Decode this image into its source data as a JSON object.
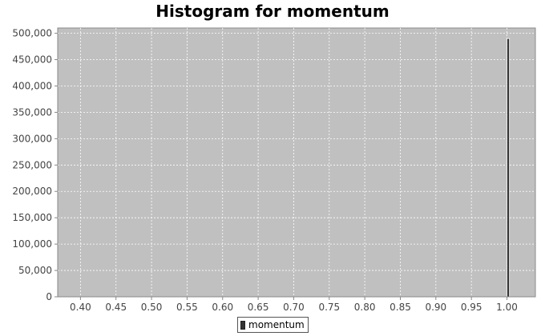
{
  "chart_data": {
    "type": "bar",
    "title": "Histogram for momentum",
    "xlabel": "",
    "ylabel": "",
    "xlim": [
      0.368,
      1.04
    ],
    "ylim": [
      0,
      510000
    ],
    "x_ticks": [
      "0.40",
      "0.45",
      "0.50",
      "0.55",
      "0.60",
      "0.65",
      "0.70",
      "0.75",
      "0.80",
      "0.85",
      "0.90",
      "0.95",
      "1.00"
    ],
    "y_ticks": [
      "0",
      "50,000",
      "100,000",
      "150,000",
      "200,000",
      "250,000",
      "300,000",
      "350,000",
      "400,000",
      "450,000",
      "500,000"
    ],
    "grid": true,
    "legend_position": "bottom",
    "series": [
      {
        "name": "momentum",
        "bins": [
          {
            "x_start": 1.0,
            "x_end": 1.0035,
            "value": 490000
          }
        ]
      }
    ],
    "colors": {
      "plot_background": "#c0c0c0",
      "bar_fill": "#333333",
      "grid": "#ffffff"
    }
  }
}
